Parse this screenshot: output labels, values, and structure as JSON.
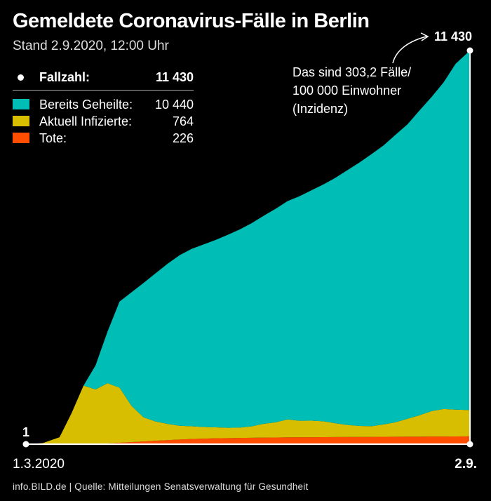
{
  "title": "Gemeldete Coronavirus-Fälle in Berlin",
  "subtitle": "Stand 2.9.2020, 12:00 Uhr",
  "legend": {
    "total": {
      "label": "Fallzahl:",
      "value": "11 430"
    },
    "items": [
      {
        "label": "Bereits Geheilte:",
        "value": "10 440",
        "color": "#00BDB5"
      },
      {
        "label": "Aktuell Infizierte:",
        "value": "764",
        "color": "#D8BE00"
      },
      {
        "label": "Tote:",
        "value": "226",
        "color": "#FF4E00"
      }
    ]
  },
  "annotation": "Das sind 303,2 Fälle/\n100 000 Einwohner\n(Inzidenz)",
  "source": "info.BILD.de | Quelle: Mitteilungen Senatsverwaltung für Gesundheit",
  "chart_data": {
    "type": "area",
    "stacked": true,
    "x": [
      "2020-03-01",
      "2020-03-08",
      "2020-03-15",
      "2020-03-20",
      "2020-03-25",
      "2020-03-30",
      "2020-04-04",
      "2020-04-09",
      "2020-04-14",
      "2020-04-19",
      "2020-04-24",
      "2020-04-29",
      "2020-05-04",
      "2020-05-09",
      "2020-05-14",
      "2020-05-19",
      "2020-05-24",
      "2020-05-29",
      "2020-06-03",
      "2020-06-08",
      "2020-06-13",
      "2020-06-18",
      "2020-06-23",
      "2020-06-28",
      "2020-07-03",
      "2020-07-08",
      "2020-07-13",
      "2020-07-18",
      "2020-07-23",
      "2020-07-28",
      "2020-08-02",
      "2020-08-07",
      "2020-08-12",
      "2020-08-17",
      "2020-08-22",
      "2020-08-27",
      "2020-09-02"
    ],
    "series": [
      {
        "name": "Tote",
        "color": "#FF4E00",
        "values": [
          0,
          0,
          0,
          0,
          2,
          8,
          20,
          40,
          60,
          80,
          100,
          118,
          135,
          150,
          160,
          170,
          176,
          182,
          186,
          190,
          194,
          198,
          200,
          202,
          204,
          206,
          208,
          210,
          212,
          214,
          216,
          218,
          220,
          221,
          222,
          224,
          226
        ]
      },
      {
        "name": "Aktuell Infizierte",
        "color": "#D8BE00",
        "values": [
          1,
          30,
          200,
          900,
          1700,
          1580,
          1750,
          1600,
          1050,
          700,
          560,
          470,
          400,
          370,
          340,
          320,
          300,
          300,
          330,
          400,
          440,
          520,
          480,
          480,
          460,
          400,
          350,
          320,
          310,
          360,
          420,
          520,
          620,
          740,
          800,
          780,
          764
        ]
      },
      {
        "name": "Bereits Geheilte",
        "color": "#00BDB5",
        "values": [
          0,
          0,
          0,
          0,
          0,
          700,
          1500,
          2500,
          3300,
          3900,
          4300,
          4650,
          4950,
          5150,
          5300,
          5440,
          5600,
          5750,
          5900,
          6040,
          6200,
          6340,
          6520,
          6690,
          6880,
          7130,
          7400,
          7650,
          7900,
          8100,
          8350,
          8550,
          8850,
          9120,
          9480,
          10040,
          10440
        ]
      }
    ],
    "total": [
      1,
      30,
      200,
      900,
      1702,
      2288,
      3270,
      4140,
      4410,
      4680,
      4960,
      5238,
      5485,
      5670,
      5800,
      5930,
      6076,
      6232,
      6416,
      6630,
      6834,
      7058,
      7200,
      7372,
      7544,
      7736,
      7958,
      8180,
      8422,
      8674,
      8986,
      9288,
      9690,
      10081,
      10502,
      11044,
      11430
    ],
    "start_label": "1.3.2020",
    "end_label": "2.9.",
    "start_value_label": "1",
    "end_value_label": "11 430",
    "ylim": [
      0,
      11430
    ],
    "grid": false
  }
}
